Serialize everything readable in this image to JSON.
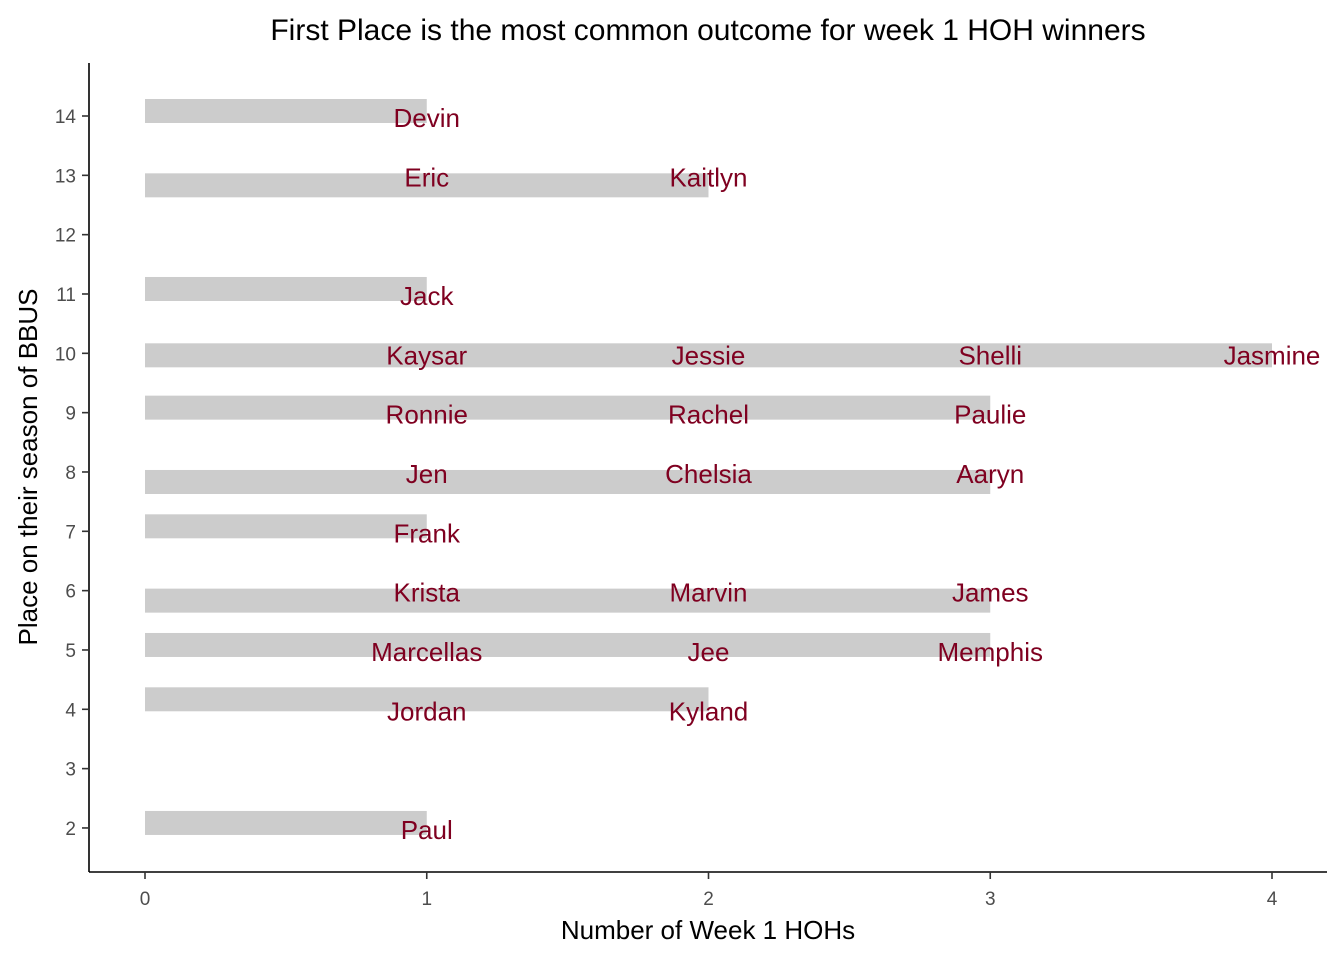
{
  "chart_data": {
    "type": "bar",
    "orientation": "horizontal",
    "title": "First Place is the most common outcome for week 1 HOH winners",
    "xlabel": "Number of Week 1 HOHs",
    "ylabel": "Place on their season of BBUS",
    "xlim": [
      0,
      4
    ],
    "ylim": [
      2,
      14
    ],
    "x_ticks": [
      "0",
      "1",
      "2",
      "3",
      "4"
    ],
    "y_ticks": [
      "2",
      "3",
      "4",
      "5",
      "6",
      "7",
      "8",
      "9",
      "10",
      "11",
      "12",
      "13",
      "14"
    ],
    "grid": false,
    "bar_color": "#cccccc",
    "label_color": "#7f0020",
    "categories": [
      2,
      4,
      5,
      6,
      7,
      8,
      9,
      10,
      11,
      13,
      14
    ],
    "values": [
      1,
      2,
      3,
      3,
      1,
      3,
      3,
      4,
      1,
      2,
      1
    ],
    "names": [
      {
        "place": 2,
        "names": [
          "Paul"
        ]
      },
      {
        "place": 4,
        "names": [
          "Jordan",
          "Kyland"
        ]
      },
      {
        "place": 5,
        "names": [
          "Marcellas",
          "Jee",
          "Memphis"
        ]
      },
      {
        "place": 6,
        "names": [
          "Krista",
          "Marvin",
          "James"
        ]
      },
      {
        "place": 7,
        "names": [
          "Frank"
        ]
      },
      {
        "place": 8,
        "names": [
          "Jen",
          "Chelsia",
          "Aaryn"
        ]
      },
      {
        "place": 9,
        "names": [
          "Ronnie",
          "Rachel",
          "Paulie"
        ]
      },
      {
        "place": 10,
        "names": [
          "Kaysar",
          "Jessie",
          "Shelli",
          "Jasmine"
        ]
      },
      {
        "place": 11,
        "names": [
          "Jack"
        ]
      },
      {
        "place": 13,
        "names": [
          "Eric",
          "Kaitlyn"
        ]
      },
      {
        "place": 14,
        "names": [
          "Devin"
        ]
      }
    ]
  }
}
